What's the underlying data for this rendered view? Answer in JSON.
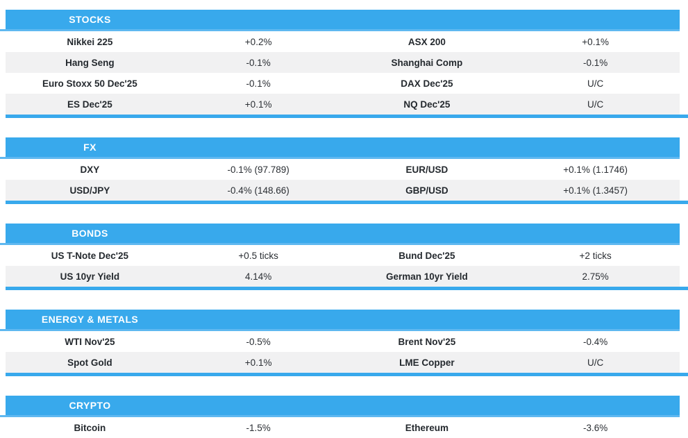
{
  "colors": {
    "header_blue": "#38a9ec",
    "thin_rule_blue": "#5fb8f0",
    "thick_rule_blue": "#38a9ec",
    "row_stripe_gray": "#f1f1f2",
    "text_dark": "#24292e",
    "header_text": "#ffffff"
  },
  "sections": [
    {
      "title": "STOCKS",
      "rows": [
        [
          "Nikkei 225",
          "+0.2%",
          "ASX 200",
          "+0.1%"
        ],
        [
          "Hang Seng",
          "-0.1%",
          "Shanghai Comp",
          "-0.1%"
        ],
        [
          "Euro Stoxx 50 Dec'25",
          "-0.1%",
          "DAX Dec'25",
          "U/C"
        ],
        [
          "ES Dec'25",
          "+0.1%",
          "NQ Dec'25",
          "U/C"
        ]
      ]
    },
    {
      "title": "FX",
      "rows": [
        [
          "DXY",
          "-0.1% (97.789)",
          "EUR/USD",
          "+0.1% (1.1746)"
        ],
        [
          "USD/JPY",
          "-0.4% (148.66)",
          "GBP/USD",
          "+0.1% (1.3457)"
        ]
      ]
    },
    {
      "title": "BONDS",
      "rows": [
        [
          "US T-Note Dec'25",
          "+0.5 ticks",
          "Bund Dec'25",
          "+2 ticks"
        ],
        [
          "US 10yr Yield",
          "4.14%",
          "German 10yr Yield",
          "2.75%"
        ]
      ]
    },
    {
      "title": "ENERGY & METALS",
      "rows": [
        [
          "WTI Nov'25",
          "-0.5%",
          "Brent Nov'25",
          "-0.4%"
        ],
        [
          "Spot Gold",
          "+0.1%",
          "LME Copper",
          "U/C"
        ]
      ]
    },
    {
      "title": "CRYPTO",
      "rows": [
        [
          "Bitcoin",
          "-1.5%",
          "Ethereum",
          "-3.6%"
        ]
      ]
    }
  ]
}
